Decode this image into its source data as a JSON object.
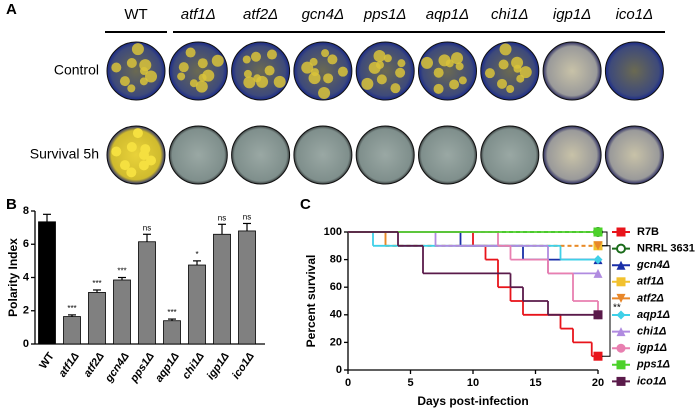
{
  "panel_labels": [
    "A",
    "B",
    "C"
  ],
  "panel_a": {
    "columns": [
      "WT",
      "atf1Δ",
      "atf2Δ",
      "gcn4Δ",
      "pps1Δ",
      "aqp1Δ",
      "chi1Δ",
      "igp1Δ",
      "ico1Δ"
    ],
    "rows": [
      "Control",
      "Survival 5h"
    ]
  },
  "chart_data": [
    {
      "type": "bar",
      "ylabel": "Polarity Index",
      "categories": [
        "WT",
        "atf1Δ",
        "atf2Δ",
        "gcn4Δ",
        "pps1Δ",
        "aqp1Δ",
        "chi1Δ",
        "igp1Δ",
        "ico1Δ"
      ],
      "values": [
        7.35,
        1.65,
        3.1,
        3.85,
        6.15,
        1.4,
        4.75,
        6.6,
        6.8
      ],
      "errors": [
        0.45,
        0.1,
        0.15,
        0.15,
        0.45,
        0.1,
        0.25,
        0.6,
        0.45
      ],
      "significance": [
        null,
        "***",
        "***",
        "***",
        "ns",
        "***",
        "*",
        "ns",
        "ns"
      ],
      "colors": [
        "#000000",
        "#808080",
        "#808080",
        "#808080",
        "#808080",
        "#808080",
        "#808080",
        "#808080",
        "#808080"
      ],
      "ylim": [
        0,
        8
      ],
      "yticks": [
        0,
        2,
        4,
        6,
        8
      ]
    },
    {
      "type": "step",
      "xlabel": "Days post-infection",
      "ylabel": "Percent survival",
      "xlim": [
        0,
        20
      ],
      "xticks": [
        0,
        5,
        10,
        15,
        20
      ],
      "ylim": [
        0,
        100
      ],
      "yticks": [
        0,
        20,
        40,
        60,
        80,
        100
      ],
      "annotation": "**",
      "series": [
        {
          "name": "R7B",
          "color": "#e8141b",
          "marker": "square",
          "italic": false,
          "dashed": false,
          "x": [
            0,
            10,
            11,
            12,
            13,
            14,
            17,
            18,
            19.5,
            20
          ],
          "values": [
            100,
            90,
            80,
            60,
            50,
            40,
            30,
            20,
            10,
            10
          ]
        },
        {
          "name": "NRRL 3631",
          "color": "#1a6b1a",
          "marker": "circle-open",
          "italic": false,
          "dashed": true,
          "x": [
            0,
            20
          ],
          "values": [
            100,
            100
          ]
        },
        {
          "name": "gcn4Δ",
          "color": "#1a2fa8",
          "marker": "triangle",
          "italic": true,
          "dashed": false,
          "x": [
            0,
            9,
            14,
            20
          ],
          "values": [
            100,
            90,
            80,
            80
          ]
        },
        {
          "name": "atf1Δ",
          "color": "#f2c12e",
          "marker": "square",
          "italic": true,
          "dashed": true,
          "x": [
            0,
            3,
            20
          ],
          "values": [
            100,
            90,
            90
          ]
        },
        {
          "name": "atf2Δ",
          "color": "#e8872a",
          "marker": "triangle-down",
          "italic": true,
          "dashed": true,
          "x": [
            0,
            3,
            20
          ],
          "values": [
            100,
            90,
            90
          ]
        },
        {
          "name": "aqp1Δ",
          "color": "#3fd0e8",
          "marker": "diamond",
          "italic": true,
          "dashed": false,
          "x": [
            0,
            2,
            17,
            20
          ],
          "values": [
            100,
            90,
            80,
            80
          ]
        },
        {
          "name": "chi1Δ",
          "color": "#b08be0",
          "marker": "triangle",
          "italic": true,
          "dashed": false,
          "x": [
            0,
            7,
            16,
            20
          ],
          "values": [
            100,
            90,
            70,
            70
          ]
        },
        {
          "name": "igp1Δ",
          "color": "#e87fb0",
          "marker": "circle",
          "italic": true,
          "dashed": false,
          "x": [
            0,
            12,
            13,
            16,
            18,
            20
          ],
          "values": [
            100,
            90,
            80,
            70,
            50,
            40
          ]
        },
        {
          "name": "pps1Δ",
          "color": "#4cd12a",
          "marker": "square",
          "italic": true,
          "dashed": false,
          "x": [
            0,
            20
          ],
          "values": [
            100,
            100
          ]
        },
        {
          "name": "ico1Δ",
          "color": "#5a1a4a",
          "marker": "square",
          "italic": true,
          "dashed": false,
          "x": [
            0,
            4,
            6,
            13,
            14,
            16,
            20
          ],
          "values": [
            100,
            90,
            70,
            60,
            50,
            40,
            40
          ]
        }
      ]
    }
  ]
}
